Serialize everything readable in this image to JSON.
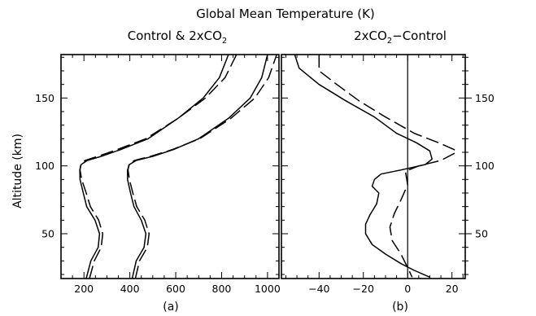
{
  "figure": {
    "title": "Global Mean Temperature (K)",
    "line_color": "#000000"
  },
  "chart_data": [
    {
      "type": "line",
      "panel_label": "(a)",
      "title_main": "Control & 2xCO",
      "title_sub": "2",
      "xlabel": "",
      "ylabel": "Altitude (km)",
      "xlim": [
        100,
        1050
      ],
      "ylim": [
        17,
        182
      ],
      "xticks": [
        200,
        400,
        600,
        800,
        1000
      ],
      "xtick_labels": [
        "200",
        "400",
        "600",
        "800",
        "1000"
      ],
      "yticks": [
        50,
        100,
        150
      ],
      "ytick_labels": [
        "50",
        "100",
        "150"
      ],
      "grid": false,
      "series": [
        {
          "style": "solid",
          "x": [
            210,
            230,
            262,
            268,
            248,
            212,
            197,
            183,
            182,
            188,
            215,
            275,
            360,
            480,
            610,
            720,
            790,
            830
          ],
          "y": [
            17,
            30,
            40,
            50,
            60,
            70,
            80,
            90,
            97,
            101,
            104,
            107,
            112,
            120,
            135,
            150,
            165,
            182
          ]
        },
        {
          "style": "dashed",
          "x": [
            224,
            245,
            275,
            282,
            264,
            228,
            210,
            190,
            183,
            186,
            205,
            260,
            345,
            470,
            610,
            730,
            815,
            865
          ],
          "y": [
            17,
            30,
            40,
            50,
            60,
            70,
            80,
            90,
            97,
            101,
            104,
            107,
            112,
            120,
            135,
            150,
            165,
            182
          ]
        },
        {
          "style": "solid",
          "x": [
            410,
            428,
            462,
            470,
            450,
            418,
            403,
            390,
            390,
            398,
            428,
            500,
            590,
            700,
            830,
            925,
            975,
            1000
          ],
          "y": [
            17,
            30,
            40,
            50,
            60,
            70,
            80,
            90,
            97,
            101,
            104,
            107,
            112,
            120,
            135,
            150,
            165,
            182
          ]
        },
        {
          "style": "dashed",
          "x": [
            424,
            442,
            476,
            484,
            465,
            430,
            413,
            398,
            392,
            396,
            420,
            490,
            585,
            705,
            840,
            945,
            1005,
            1040
          ],
          "y": [
            17,
            30,
            40,
            50,
            60,
            70,
            80,
            90,
            97,
            101,
            104,
            107,
            112,
            120,
            135,
            150,
            165,
            182
          ]
        }
      ]
    },
    {
      "type": "line",
      "panel_label": "(b)",
      "title_main": "2xCO",
      "title_sub": "2",
      "title_after": "−Control",
      "xlabel": "",
      "ylabel": "",
      "xlim": [
        -57,
        26
      ],
      "ylim": [
        17,
        182
      ],
      "xticks": [
        -40,
        -20,
        0,
        20
      ],
      "xtick_labels": [
        "−40",
        "−20",
        "0",
        "20"
      ],
      "yticks": [
        50,
        100,
        150
      ],
      "ytick_labels": [
        "50",
        "100",
        "150"
      ],
      "grid": false,
      "zero_line_x": 0,
      "series": [
        {
          "style": "solid",
          "x": [
            -51,
            -49,
            -40,
            -28,
            -15,
            -5,
            4,
            10,
            11,
            8,
            -3,
            -12,
            -15,
            -16,
            -13,
            -14,
            -17,
            -19,
            -19,
            -16,
            -10,
            -3,
            3,
            10
          ],
          "y": [
            182,
            172,
            160,
            148,
            136,
            124,
            117,
            111,
            105,
            101,
            97,
            94,
            90,
            85,
            80,
            72,
            64,
            57,
            50,
            42,
            35,
            28,
            23,
            18
          ]
        },
        {
          "style": "dashed",
          "x": [
            -40,
            -40,
            -32,
            -22,
            -10,
            3,
            14,
            21,
            22,
            15,
            5,
            -1,
            0,
            -3,
            -6,
            -8,
            -7,
            -3,
            0,
            2
          ],
          "y": [
            182,
            170,
            160,
            148,
            136,
            124,
            117,
            112,
            110,
            104,
            100,
            96,
            86,
            75,
            65,
            55,
            45,
            35,
            25,
            18
          ]
        }
      ]
    }
  ]
}
